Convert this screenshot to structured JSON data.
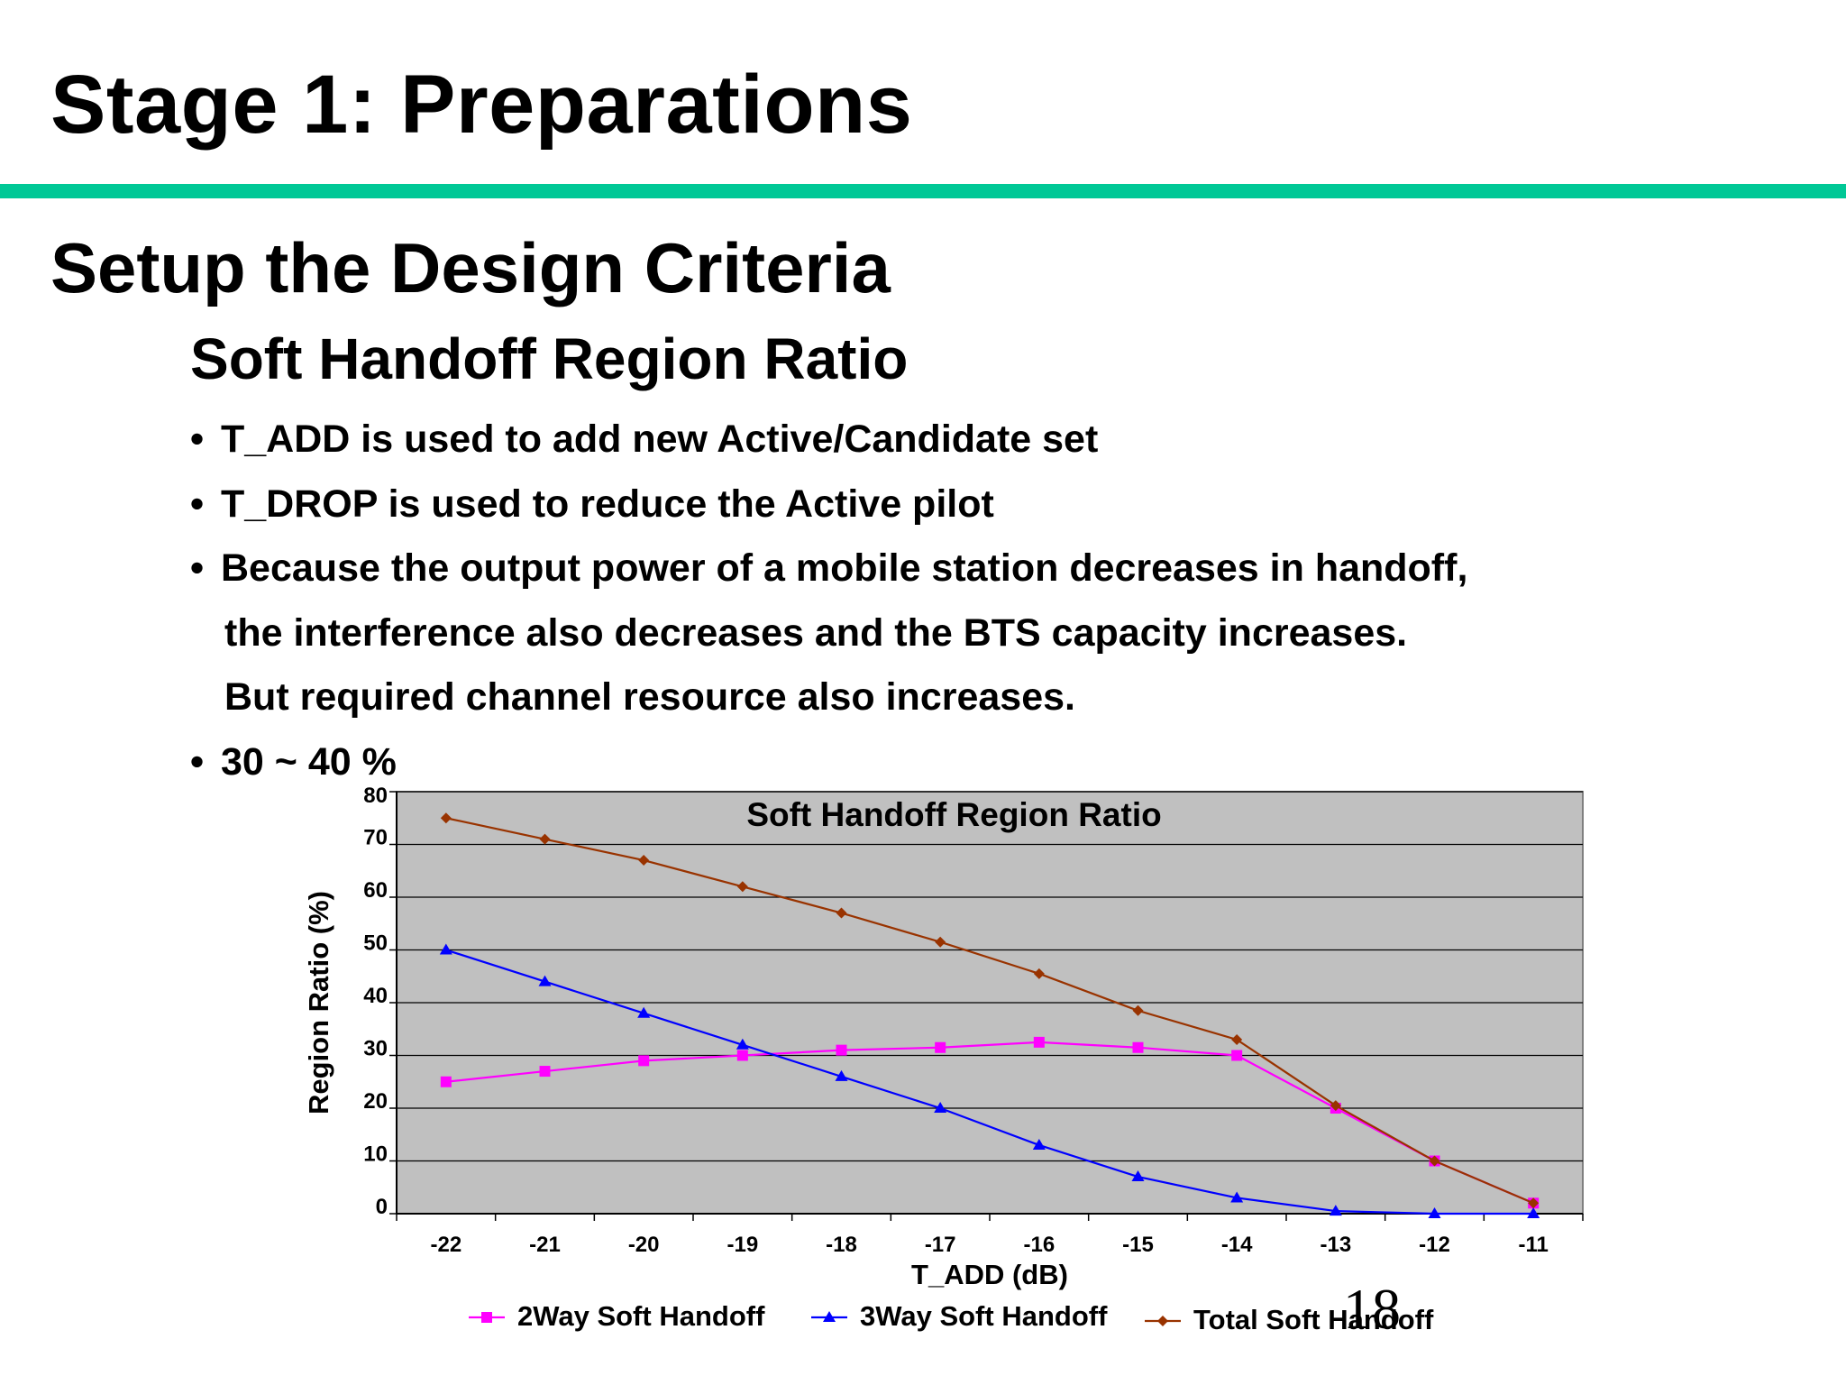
{
  "slide": {
    "title": "Stage 1: Preparations",
    "heading": "Setup the Design Criteria",
    "subheading": "Soft Handoff Region Ratio",
    "bullets": [
      "T_ADD is used to add new Active/Candidate set",
      "T_DROP is used to reduce the Active pilot",
      "Because the output power of a mobile station decreases in handoff,",
      "30 ~ 40 %"
    ],
    "bullet3_cont1": "the interference also decreases and the BTS capacity increases.",
    "bullet3_cont2": "But required channel resource also increases.",
    "page_number": "18",
    "rule_color": "#00c896"
  },
  "chart_data": {
    "type": "line",
    "title": "Soft Handoff Region Ratio",
    "xlabel": "T_ADD (dB)",
    "ylabel": "Region Ratio (%)",
    "categories": [
      "-22",
      "-21",
      "-20",
      "-19",
      "-18",
      "-17",
      "-16",
      "-15",
      "-14",
      "-13",
      "-12",
      "-11"
    ],
    "ylim": [
      0,
      80
    ],
    "yticks": [
      0,
      10,
      20,
      30,
      40,
      50,
      60,
      70,
      80
    ],
    "grid": true,
    "legend_position": "bottom",
    "plot_background": "#c0c0c0",
    "series": [
      {
        "name": "2Way Soft Handoff",
        "color": "#ff00ff",
        "marker": "square",
        "values": [
          25,
          27,
          29,
          30,
          31,
          31.5,
          32.5,
          31.5,
          30,
          20,
          10,
          2
        ]
      },
      {
        "name": "3Way Soft Handoff",
        "color": "#0000ff",
        "marker": "triangle",
        "values": [
          50,
          44,
          38,
          32,
          26,
          20,
          13,
          7,
          3,
          0.5,
          0,
          0
        ]
      },
      {
        "name": "Total Soft Handoff",
        "color": "#993300",
        "marker": "diamond",
        "values": [
          75,
          71,
          67,
          62,
          57,
          51.5,
          45.5,
          38.5,
          33,
          20.5,
          10,
          2
        ]
      }
    ]
  }
}
